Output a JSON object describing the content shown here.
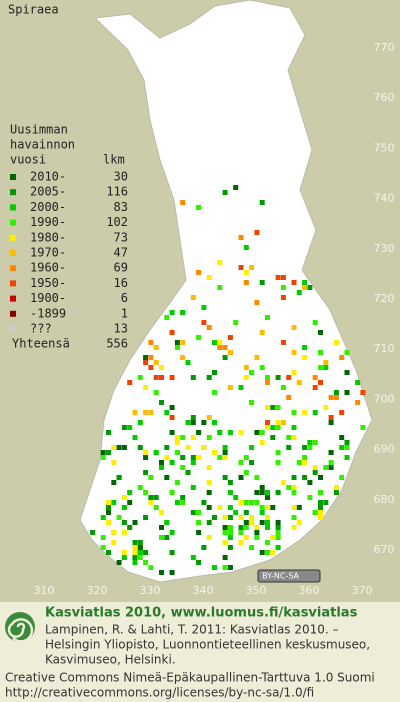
{
  "map": {
    "title": "Spiraea",
    "legend": {
      "heading": [
        "Uusimman",
        "havainnon",
        "vuosi"
      ],
      "count_heading": "lkm",
      "rows": [
        {
          "label": "2010-",
          "count": 30,
          "color": "#006600"
        },
        {
          "label": "2005-",
          "count": 116,
          "color": "#009900"
        },
        {
          "label": "2000-",
          "count": 83,
          "color": "#00cc00"
        },
        {
          "label": "1990-",
          "count": 102,
          "color": "#33ee00"
        },
        {
          "label": "1980-",
          "count": 73,
          "color": "#ffee00"
        },
        {
          "label": "1970-",
          "count": 47,
          "color": "#ffbb00"
        },
        {
          "label": "1960-",
          "count": 69,
          "color": "#ff8800"
        },
        {
          "label": "1950-",
          "count": 16,
          "color": "#ee4400"
        },
        {
          "label": "1900-",
          "count": 6,
          "color": "#cc0000"
        },
        {
          "label": "-1899",
          "count": 1,
          "color": "#880000"
        },
        {
          "label": "???",
          "count": 13,
          "color": "#cccccc"
        }
      ],
      "total_label": "Yhteensä",
      "total": 556
    },
    "xticks": [
      310,
      320,
      330,
      340,
      350,
      360,
      370
    ],
    "yticks": [
      670,
      680,
      690,
      700,
      710,
      720,
      730,
      740,
      750,
      760,
      770
    ],
    "xlim": [
      300,
      375
    ],
    "ylim": [
      664,
      778
    ],
    "license_badge": "BY-NC-SA",
    "footer": {
      "brand": "Kasviatlas 2010, www.luomus.fi/kasviatlas",
      "citation": [
        "Lampinen, R. & Lahti, T. 2011: Kasviatlas 2010. –",
        "Helsingin Yliopisto, Luonnontieteellinen keskusmuseo,",
        "Kasvimuseo, Helsinki."
      ],
      "license": [
        "Creative Commons Nimeä-Epäkaupallinen-Tarttuva 1.0 Suomi",
        "http://creativecommons.org/licenses/by-nc-sa/1.0/fi"
      ]
    }
  }
}
